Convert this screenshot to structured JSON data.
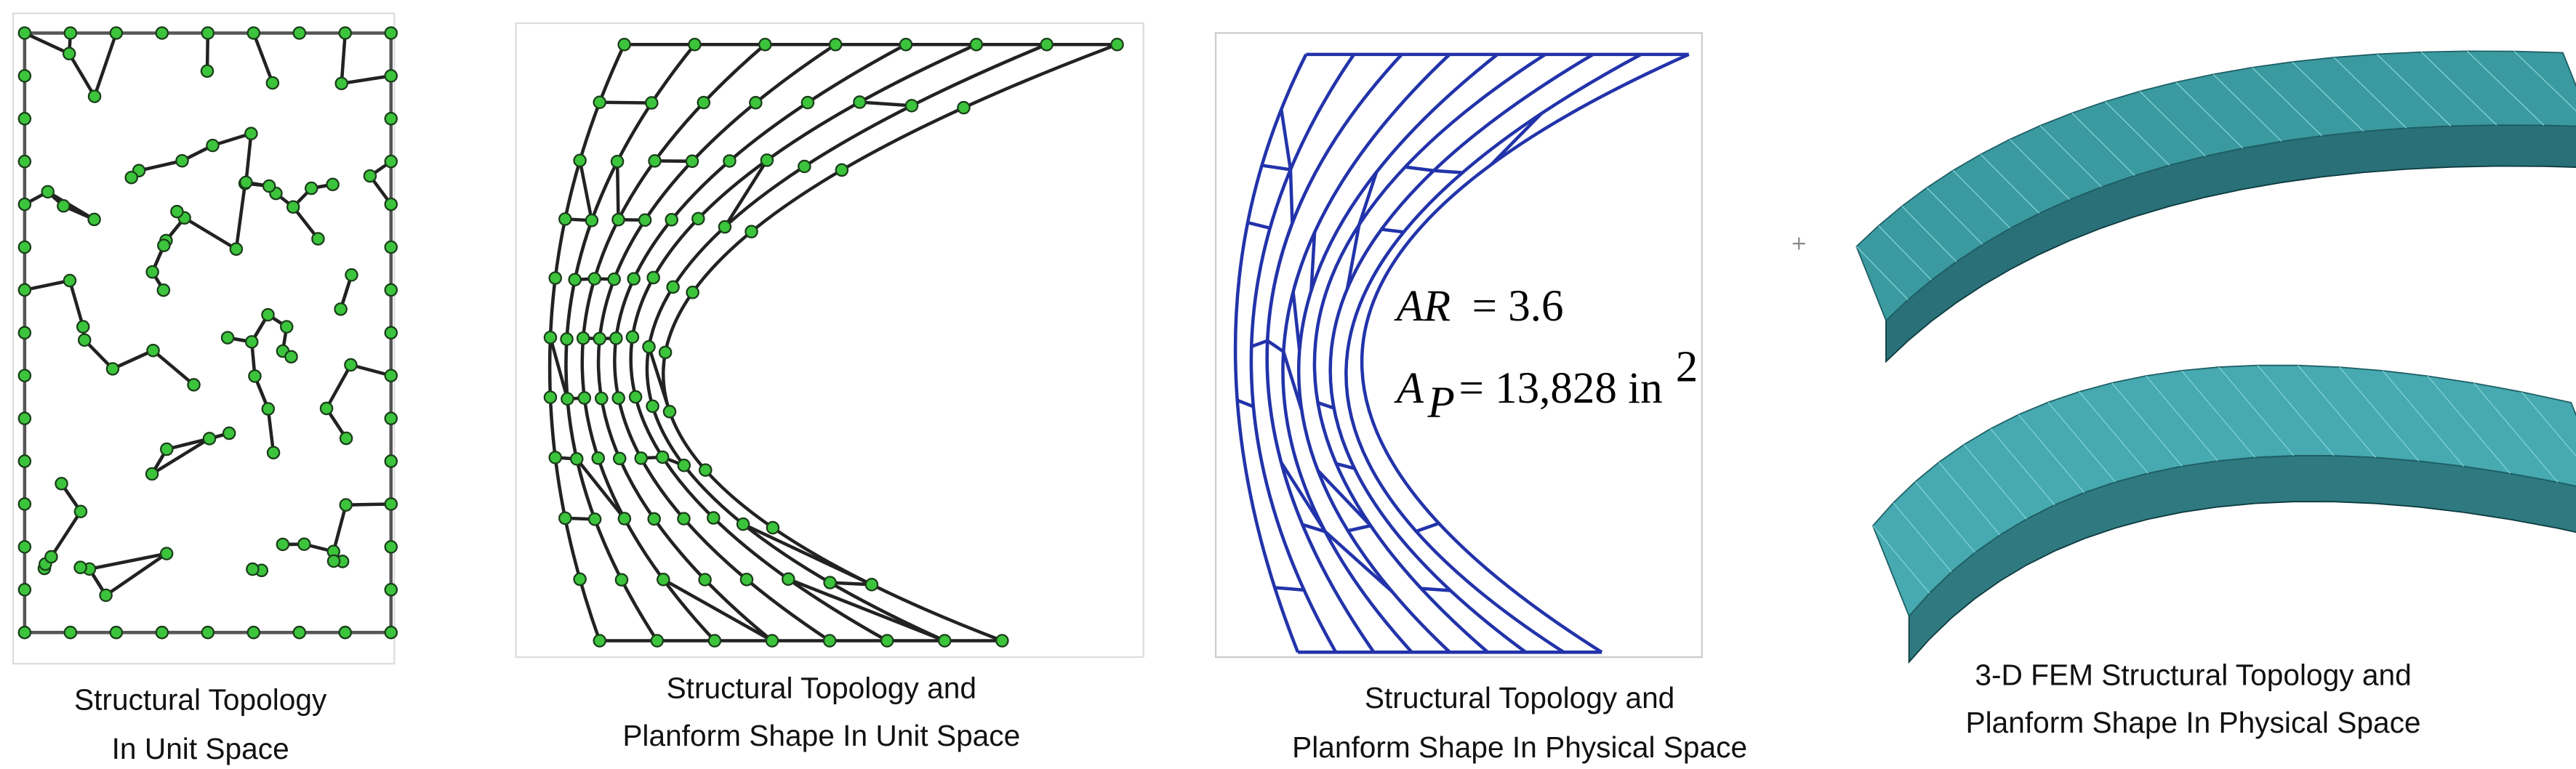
{
  "panels": [
    {
      "caption": [
        "Structural Topology",
        "In Unit Space"
      ]
    },
    {
      "caption": [
        "Structural Topology and",
        "Planform Shape In Unit Space"
      ]
    },
    {
      "caption": [
        "Structural Topology and",
        "Planform Shape In Physical Space"
      ],
      "annotation": {
        "ar_symbol": "AR",
        "ar_value": "= 3.6",
        "ap_symbol": "A",
        "ap_subscript": "P",
        "ap_value": "= 13,828 in",
        "ap_superscript": "2"
      }
    },
    {
      "caption": [
        "3-D FEM Structural Topology and",
        "Planform Shape In Physical Space"
      ]
    }
  ]
}
